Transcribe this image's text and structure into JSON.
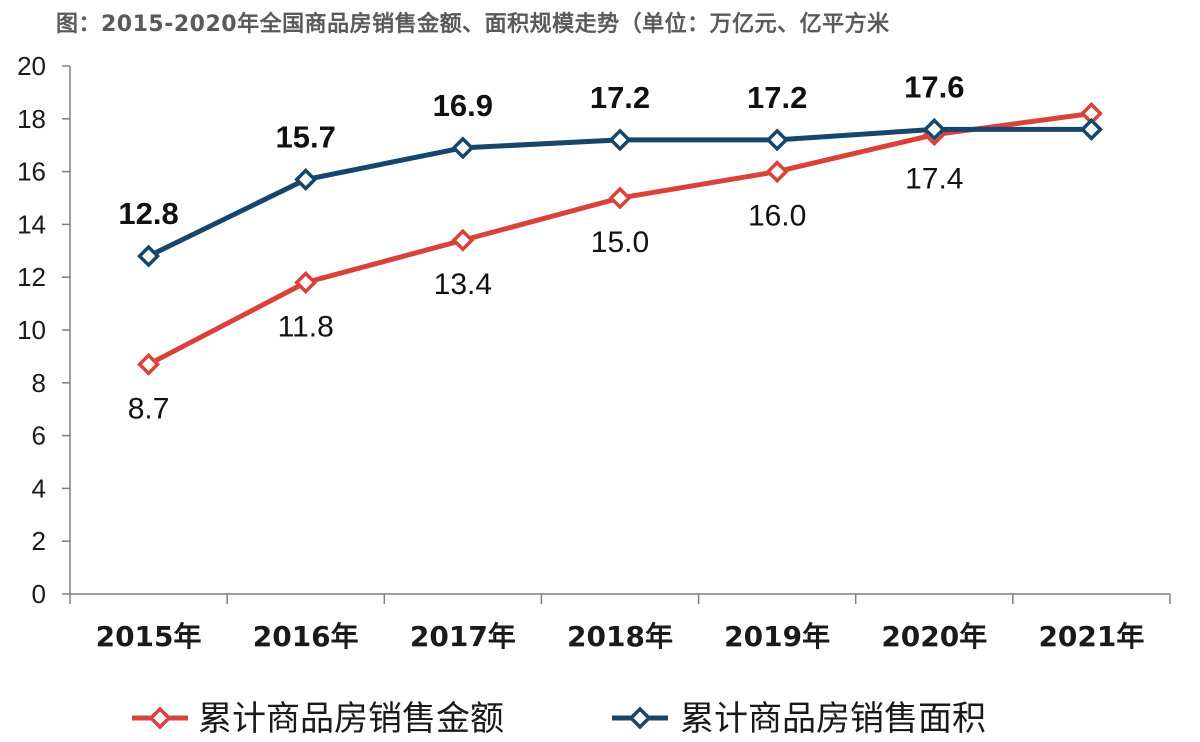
{
  "chart_data": {
    "type": "line",
    "title": "图：2015-2020年全国商品房销售金额、面积规模走势（单位：万亿元、亿平方米",
    "categories": [
      "2015年",
      "2016年",
      "2017年",
      "2018年",
      "2019年",
      "2020年",
      "2021年"
    ],
    "ylim": [
      0,
      20
    ],
    "yticks": [
      0,
      2,
      4,
      6,
      8,
      10,
      12,
      14,
      16,
      18,
      20
    ],
    "grid": false,
    "legend_position": "bottom",
    "series": [
      {
        "name": "累计商品房销售金额",
        "color": "#d9423a",
        "values": [
          8.7,
          11.8,
          13.4,
          15.0,
          16.0,
          17.4,
          18.2
        ],
        "labels": [
          "8.7",
          "11.8",
          "13.4",
          "15.0",
          "16.0",
          "17.4",
          ""
        ]
      },
      {
        "name": "累计商品房销售面积",
        "color": "#17456b",
        "values": [
          12.8,
          15.7,
          16.9,
          17.2,
          17.2,
          17.6,
          17.6
        ],
        "labels": [
          "12.8",
          "15.7",
          "16.9",
          "17.2",
          "17.2",
          "17.6",
          ""
        ]
      }
    ]
  }
}
